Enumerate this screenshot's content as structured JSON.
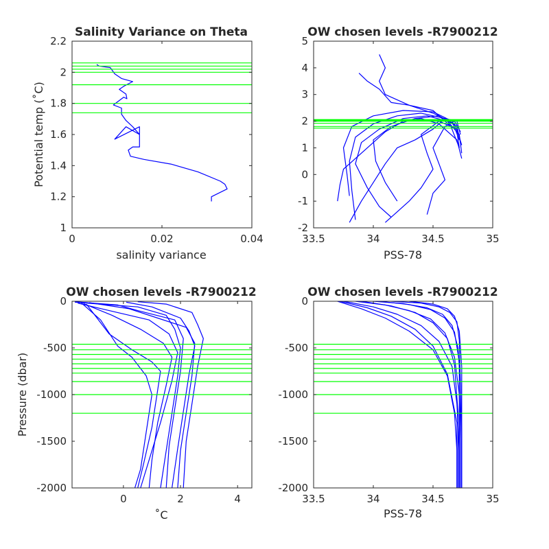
{
  "chart_data": [
    {
      "id": "p1",
      "type": "line",
      "title": "Salinity Variance on Theta",
      "xlabel": "salinity variance",
      "ylabel": "Potential temp (˚C)",
      "xlim": [
        0,
        0.04
      ],
      "ylim": [
        1,
        2.2
      ],
      "xticks": [
        0,
        0.02,
        0.04
      ],
      "xtick_labels": [
        "0",
        "0.02",
        "0.04"
      ],
      "yticks": [
        1,
        1.2,
        1.4,
        1.6,
        1.8,
        2,
        2.2
      ],
      "ytick_labels": [
        "1",
        "1.2",
        "1.4",
        "1.6",
        "1.8",
        "2",
        "2.2"
      ],
      "series": [
        {
          "color": "#0000ff",
          "x": [
            0.031,
            0.031,
            0.0345,
            0.034,
            0.033,
            0.028,
            0.022,
            0.016,
            0.013,
            0.0125,
            0.0135,
            0.015,
            0.015,
            0.0095,
            0.012,
            0.015,
            0.0135,
            0.012,
            0.011,
            0.011,
            0.0092,
            0.0115,
            0.0122,
            0.012,
            0.0105,
            0.0115,
            0.0135,
            0.011,
            0.0095,
            0.0085,
            0.006,
            0.0055
          ],
          "y": [
            1.17,
            1.2,
            1.25,
            1.28,
            1.3,
            1.36,
            1.41,
            1.44,
            1.46,
            1.5,
            1.52,
            1.52,
            1.65,
            1.57,
            1.65,
            1.6,
            1.65,
            1.69,
            1.73,
            1.77,
            1.79,
            1.84,
            1.83,
            1.86,
            1.89,
            1.91,
            1.94,
            1.96,
            1.99,
            2.03,
            2.04,
            2.05
          ]
        }
      ],
      "hlines": {
        "color": "#00ff00",
        "values": [
          1.74,
          1.8,
          1.92,
          2,
          2.02,
          2.04,
          2.06
        ]
      }
    },
    {
      "id": "p2",
      "type": "line",
      "title": "OW chosen levels -R7900212",
      "xlabel": "PSS-78",
      "ylabel": "",
      "xlim": [
        33.5,
        35
      ],
      "ylim": [
        -2,
        5
      ],
      "xticks": [
        33.5,
        34,
        34.5,
        35
      ],
      "xtick_labels": [
        "33.5",
        "34",
        "34.5",
        "35"
      ],
      "yticks": [
        -2,
        -1,
        0,
        1,
        2,
        3,
        4,
        5
      ],
      "ytick_labels": [
        "-2",
        "-1",
        "0",
        "1",
        "2",
        "3",
        "4",
        "5"
      ],
      "series": [
        {
          "color": "#0000ff",
          "x": [
            34.72,
            34.7,
            34.62,
            34.45,
            34.25,
            34.05,
            33.9,
            33.85,
            33.95,
            34.05,
            34.15
          ],
          "y": [
            1.0,
            1.6,
            2.0,
            2.2,
            2.1,
            1.7,
            1.2,
            0.4,
            -0.5,
            -1.2,
            -1.6
          ]
        },
        {
          "color": "#0000ff",
          "x": [
            34.74,
            34.72,
            34.6,
            34.4,
            34.2,
            34.0,
            33.85,
            33.8,
            33.82,
            33.85
          ],
          "y": [
            0.8,
            1.5,
            2.1,
            2.3,
            2.2,
            1.9,
            1.4,
            0.5,
            -0.6,
            -1.7
          ]
        },
        {
          "color": "#0000ff",
          "x": [
            34.73,
            34.7,
            34.55,
            34.35,
            34.15,
            34.0,
            34.02,
            34.1,
            34.2
          ],
          "y": [
            1.2,
            1.8,
            2.2,
            2.1,
            1.8,
            1.3,
            0.5,
            -0.3,
            -1.0
          ]
        },
        {
          "color": "#0000ff",
          "x": [
            34.72,
            34.68,
            34.5,
            34.3,
            34.1,
            34.05,
            34.1,
            34.05
          ],
          "y": [
            1.4,
            1.9,
            2.3,
            2.6,
            3.0,
            3.5,
            4.0,
            4.5
          ]
        },
        {
          "color": "#0000ff",
          "x": [
            34.74,
            34.7,
            34.55,
            34.4,
            34.25,
            34.1,
            33.95,
            33.75,
            33.72,
            33.7
          ],
          "y": [
            0.6,
            1.3,
            1.9,
            2.1,
            2.0,
            1.6,
            1.0,
            0.2,
            -0.4,
            -1.0
          ]
        },
        {
          "color": "#0000ff",
          "x": [
            34.73,
            34.7,
            34.6,
            34.5,
            34.35,
            34.2,
            34.1,
            34.0,
            33.9,
            33.8
          ],
          "y": [
            1.5,
            2.0,
            2.1,
            1.7,
            1.3,
            1.0,
            0.4,
            -0.3,
            -1.0,
            -1.8
          ]
        },
        {
          "color": "#0000ff",
          "x": [
            34.72,
            34.65,
            34.5,
            34.3,
            34.15,
            34.05,
            33.95,
            33.88
          ],
          "y": [
            1.0,
            1.8,
            2.4,
            2.6,
            2.7,
            3.2,
            3.5,
            3.8
          ]
        },
        {
          "color": "#0000ff",
          "x": [
            34.74,
            34.7,
            34.55,
            34.4,
            34.45,
            34.5,
            34.4,
            34.3,
            34.2,
            34.1
          ],
          "y": [
            1.1,
            1.7,
            2.0,
            1.5,
            0.8,
            0.2,
            -0.5,
            -1.0,
            -1.4,
            -1.8
          ]
        },
        {
          "color": "#0000ff",
          "x": [
            34.73,
            34.68,
            34.6,
            34.5,
            34.55,
            34.6,
            34.5,
            34.45
          ],
          "y": [
            1.6,
            2.0,
            1.8,
            1.0,
            0.4,
            -0.2,
            -0.7,
            -1.5
          ]
        },
        {
          "color": "#0000ff",
          "x": [
            34.72,
            34.66,
            34.5,
            34.25,
            34.0,
            33.82,
            33.75,
            33.78,
            33.8
          ],
          "y": [
            1.3,
            2.0,
            2.35,
            2.4,
            2.2,
            1.8,
            1.0,
            0.0,
            -0.8
          ]
        }
      ],
      "hlines": {
        "color": "#00ff00",
        "values": [
          1.74,
          1.8,
          1.92,
          2,
          2.02,
          2.04,
          2.06
        ]
      }
    },
    {
      "id": "p3",
      "type": "line",
      "title": "OW chosen levels -R7900212",
      "xlabel": "˚C",
      "ylabel": "Pressure (dbar)",
      "xlim": [
        -1.8,
        4.5
      ],
      "ylim": [
        -2000,
        0
      ],
      "xticks": [
        0,
        2,
        4
      ],
      "xtick_labels": [
        "0",
        "2",
        "4"
      ],
      "yticks": [
        -2000,
        -1500,
        -1000,
        -500,
        0
      ],
      "ytick_labels": [
        "-2000",
        "-1500",
        "-1000",
        "-500",
        "0"
      ],
      "series": [
        {
          "color": "#0000ff",
          "x": [
            -1.7,
            0.5,
            1.5,
            1.8,
            2.0,
            1.9,
            1.7,
            1.5,
            1.3
          ],
          "y": [
            -10,
            -60,
            -150,
            -300,
            -500,
            -800,
            -1200,
            -1600,
            -2000
          ]
        },
        {
          "color": "#0000ff",
          "x": [
            -1.6,
            -0.5,
            0.9,
            1.6,
            1.9,
            1.7,
            1.3,
            0.9,
            0.6
          ],
          "y": [
            -20,
            -100,
            -200,
            -350,
            -550,
            -850,
            -1300,
            -1700,
            -2000
          ]
        },
        {
          "color": "#0000ff",
          "x": [
            -1.2,
            0.2,
            1.2,
            2.2,
            2.5,
            2.4,
            2.2,
            2.0,
            1.9
          ],
          "y": [
            -15,
            -80,
            -180,
            -280,
            -450,
            -800,
            -1200,
            -1600,
            -2000
          ]
        },
        {
          "color": "#0000ff",
          "x": [
            -1.5,
            -0.8,
            -0.2,
            0.3,
            0.8,
            1.0,
            0.8,
            0.6,
            0.4
          ],
          "y": [
            -10,
            -200,
            -480,
            -600,
            -800,
            -1000,
            -1400,
            -1800,
            -2000
          ]
        },
        {
          "color": "#0000ff",
          "x": [
            0.5,
            1.5,
            2.4,
            2.6,
            2.8,
            2.6,
            2.4,
            2.2,
            2.1
          ],
          "y": [
            -5,
            -30,
            -120,
            -250,
            -400,
            -700,
            -1100,
            -1500,
            -2000
          ]
        },
        {
          "color": "#0000ff",
          "x": [
            -1.4,
            -0.4,
            0.6,
            1.4,
            1.7,
            1.5,
            1.2,
            1.0,
            0.9
          ],
          "y": [
            -25,
            -150,
            -300,
            -450,
            -600,
            -900,
            -1300,
            -1700,
            -2000
          ]
        },
        {
          "color": "#0000ff",
          "x": [
            -1.7,
            -0.2,
            0.5,
            1.8,
            2.1,
            2.0,
            1.8,
            1.6,
            1.5
          ],
          "y": [
            -5,
            -40,
            -100,
            -200,
            -400,
            -750,
            -1150,
            -1550,
            -2000
          ]
        },
        {
          "color": "#0000ff",
          "x": [
            -1.3,
            -0.5,
            0.3,
            1.0,
            1.3,
            1.2,
            1.0,
            0.7,
            0.5
          ],
          "y": [
            -30,
            -350,
            -520,
            -650,
            -750,
            -950,
            -1350,
            -1750,
            -2000
          ]
        },
        {
          "color": "#0000ff",
          "x": [
            0.1,
            1.0,
            2.0,
            2.3,
            2.5,
            2.3,
            2.1,
            1.9,
            1.7
          ],
          "y": [
            -10,
            -60,
            -180,
            -320,
            -480,
            -780,
            -1180,
            -1580,
            -2000
          ]
        }
      ],
      "hlines": {
        "color": "#00ff00",
        "values": [
          -460,
          -520,
          -570,
          -620,
          -670,
          -720,
          -770,
          -860,
          -1000,
          -1200
        ]
      }
    },
    {
      "id": "p4",
      "type": "line",
      "title": "OW chosen levels -R7900212",
      "xlabel": "PSS-78",
      "ylabel": "",
      "xlim": [
        33.5,
        35
      ],
      "ylim": [
        -2000,
        0
      ],
      "xticks": [
        33.5,
        34,
        34.5,
        35
      ],
      "xtick_labels": [
        "33.5",
        "34",
        "34.5",
        "35"
      ],
      "yticks": [
        -2000,
        -1500,
        -1000,
        -500,
        0
      ],
      "ytick_labels": [
        "-2000",
        "-1500",
        "-1000",
        "-500",
        "0"
      ],
      "series": [
        {
          "color": "#0000ff",
          "x": [
            33.7,
            33.9,
            34.1,
            34.3,
            34.5,
            34.62,
            34.68,
            34.7,
            34.7
          ],
          "y": [
            0,
            -80,
            -180,
            -320,
            -520,
            -800,
            -1200,
            -1600,
            -2000
          ]
        },
        {
          "color": "#0000ff",
          "x": [
            33.75,
            34.0,
            34.2,
            34.4,
            34.55,
            34.66,
            34.7,
            34.72,
            34.72
          ],
          "y": [
            0,
            -60,
            -140,
            -260,
            -430,
            -700,
            -1100,
            -1600,
            -2000
          ]
        },
        {
          "color": "#0000ff",
          "x": [
            33.85,
            34.1,
            34.3,
            34.48,
            34.6,
            34.68,
            34.72,
            34.73,
            34.73
          ],
          "y": [
            0,
            -40,
            -100,
            -190,
            -340,
            -600,
            -1000,
            -1500,
            -2000
          ]
        },
        {
          "color": "#0000ff",
          "x": [
            34.0,
            34.25,
            34.45,
            34.58,
            34.66,
            34.71,
            34.73,
            34.74,
            34.74
          ],
          "y": [
            0,
            -25,
            -70,
            -140,
            -260,
            -500,
            -900,
            -1400,
            -2000
          ]
        },
        {
          "color": "#0000ff",
          "x": [
            34.15,
            34.4,
            34.55,
            34.64,
            34.7,
            34.72,
            34.73,
            34.73
          ],
          "y": [
            0,
            -20,
            -60,
            -120,
            -220,
            -420,
            -900,
            -2000
          ]
        },
        {
          "color": "#0000ff",
          "x": [
            33.72,
            33.95,
            34.15,
            34.35,
            34.5,
            34.62,
            34.7,
            34.7
          ],
          "y": [
            0,
            -70,
            -160,
            -300,
            -480,
            -780,
            -1300,
            -2000
          ]
        },
        {
          "color": "#0000ff",
          "x": [
            33.9,
            34.15,
            34.35,
            34.5,
            34.62,
            34.68,
            34.71,
            34.71
          ],
          "y": [
            0,
            -50,
            -120,
            -230,
            -400,
            -680,
            -1200,
            -2000
          ]
        },
        {
          "color": "#0000ff",
          "x": [
            34.3,
            34.5,
            34.62,
            34.68,
            34.72,
            34.74,
            34.74
          ],
          "y": [
            0,
            -30,
            -80,
            -160,
            -320,
            -700,
            -2000
          ]
        },
        {
          "color": "#0000ff",
          "x": [
            34.05,
            34.3,
            34.48,
            34.6,
            34.68,
            34.72,
            34.72
          ],
          "y": [
            0,
            -35,
            -90,
            -180,
            -330,
            -650,
            -2000
          ]
        }
      ],
      "hlines": {
        "color": "#00ff00",
        "values": [
          -460,
          -520,
          -570,
          -620,
          -670,
          -720,
          -770,
          -860,
          -1000,
          -1200
        ]
      }
    }
  ]
}
